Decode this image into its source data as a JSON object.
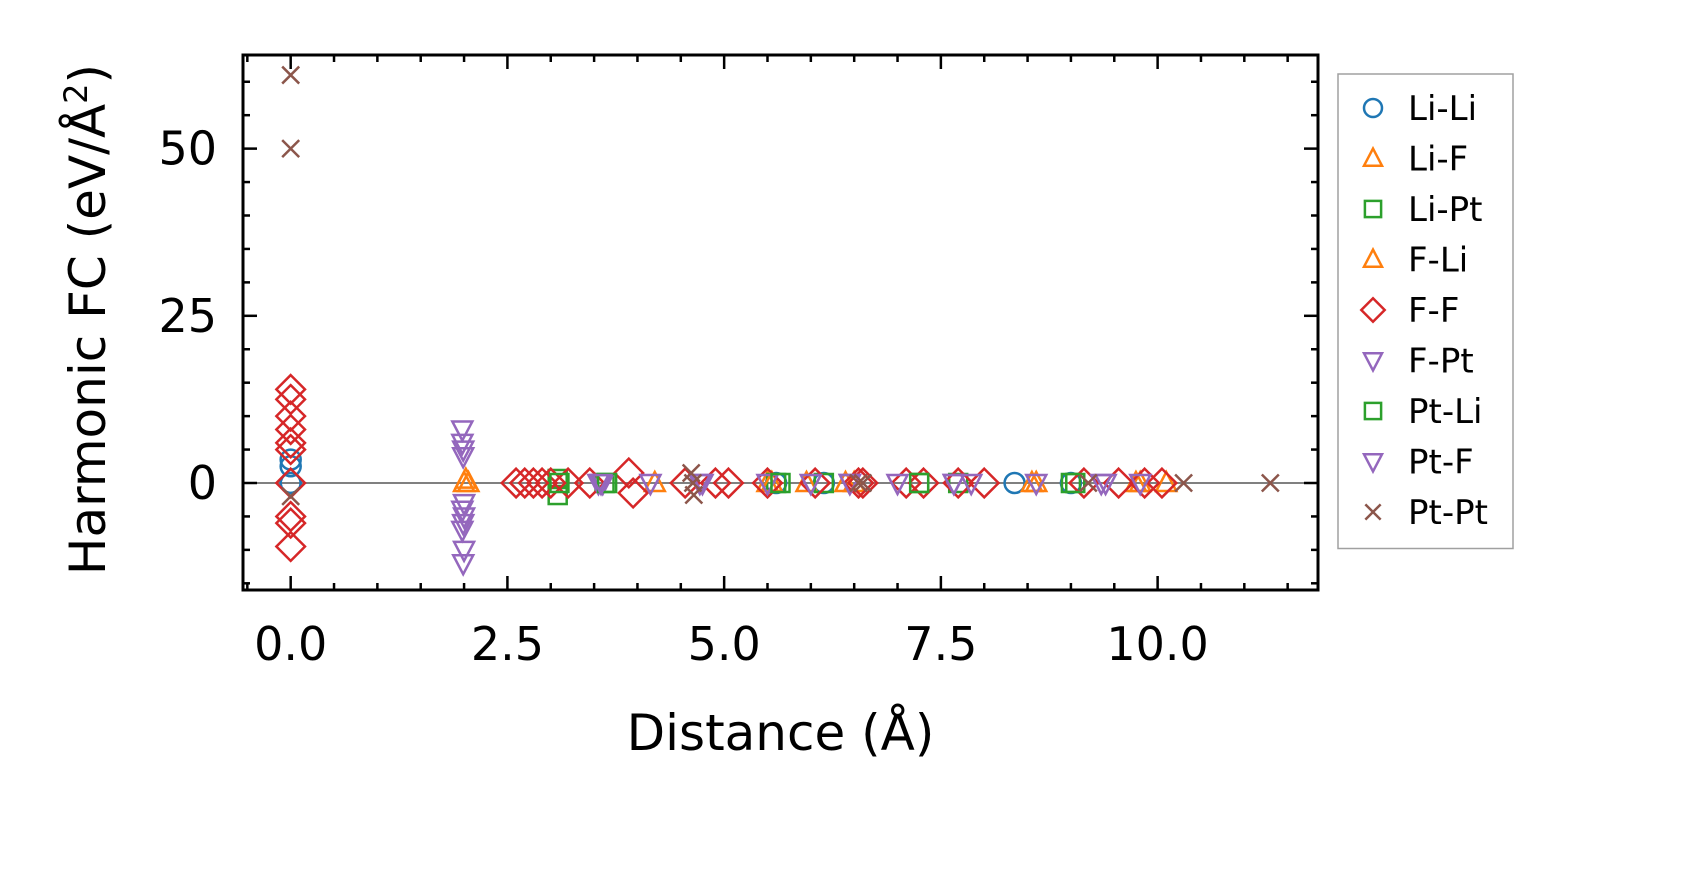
{
  "chart_data": {
    "type": "scatter",
    "title": "",
    "xlabel": "Distance (Å)",
    "ylabel_main": "Harmonic FC (eV/Å",
    "ylabel_sup": "2",
    "ylabel_close": ")",
    "xlim": [
      -0.55,
      11.85
    ],
    "ylim": [
      -16,
      64
    ],
    "xticks": [
      0.0,
      2.5,
      5.0,
      7.5,
      10.0
    ],
    "xtick_labels": [
      "0.0",
      "2.5",
      "5.0",
      "7.5",
      "10.0"
    ],
    "yticks": [
      0,
      25,
      50
    ],
    "ytick_labels": [
      "0",
      "25",
      "50"
    ],
    "zero_line": true,
    "legend_position": "outside-right",
    "series": [
      {
        "name": "Li-Li",
        "marker": "circle",
        "color": "#1f77b4",
        "x": [
          0,
          0,
          0,
          0,
          5.6,
          6.15,
          8.35,
          9.0
        ],
        "y": [
          0,
          2.5,
          3.5,
          0,
          0,
          0,
          0,
          0
        ]
      },
      {
        "name": "Li-F",
        "marker": "triangle-up",
        "color": "#ff7f0e",
        "x": [
          2.0,
          2.02,
          5.5,
          5.95,
          6.4,
          8.55,
          9.75,
          10.1
        ],
        "y": [
          0,
          0.5,
          0,
          0,
          0,
          0,
          0,
          0
        ]
      },
      {
        "name": "Li-Pt",
        "marker": "square",
        "color": "#2ca02c",
        "x": [
          3.08,
          3.08,
          3.62,
          5.6,
          6.15,
          7.25,
          7.7,
          9.05
        ],
        "y": [
          0.6,
          -1.8,
          0,
          0,
          0,
          0,
          0,
          0
        ]
      },
      {
        "name": "F-Li",
        "marker": "triangle-up",
        "color": "#ff7f0e",
        "x": [
          2.05,
          4.2,
          5.55,
          6.5,
          8.6,
          9.8
        ],
        "y": [
          0,
          0,
          0,
          0,
          0,
          0
        ]
      },
      {
        "name": "F-F",
        "marker": "diamond",
        "color": "#d62728",
        "x": [
          0,
          0,
          0,
          0,
          0,
          0,
          0,
          0,
          0,
          0,
          2.6,
          2.7,
          2.8,
          2.9,
          3.0,
          3.2,
          3.45,
          3.9,
          3.95,
          4.55,
          4.9,
          5.05,
          5.5,
          6.05,
          6.55,
          6.6,
          7.1,
          7.3,
          7.7,
          8.0,
          9.15,
          9.55,
          9.85,
          10.05
        ],
        "y": [
          14,
          12.5,
          10,
          8,
          6,
          5,
          0,
          -5,
          -6,
          -9.5,
          0,
          0,
          0,
          0,
          0,
          0,
          0,
          1.5,
          -1.5,
          0,
          0,
          0,
          0,
          0,
          0,
          0,
          0,
          0,
          0,
          0,
          0,
          0,
          0,
          0
        ]
      },
      {
        "name": "F-Pt",
        "marker": "triangle-down",
        "color": "#9467bd",
        "x": [
          1.98,
          1.98,
          1.99,
          2.0,
          1.98,
          2.0,
          1.99,
          1.98,
          2.0,
          1.99,
          3.55,
          3.6,
          4.15,
          4.75,
          5.5,
          6.0,
          6.45,
          7.0,
          7.65,
          7.85,
          8.6,
          9.35,
          9.8
        ],
        "y": [
          8,
          6,
          4,
          -3,
          -4,
          -5,
          -6,
          -7,
          -10,
          -12,
          0,
          0,
          0,
          0,
          0,
          0,
          0,
          0,
          0,
          0,
          0,
          0,
          0
        ]
      },
      {
        "name": "Pt-Li",
        "marker": "square",
        "color": "#2ca02c",
        "x": [
          3.1,
          3.65,
          5.65,
          7.25,
          9.0
        ],
        "y": [
          0,
          0,
          0,
          0,
          0
        ]
      },
      {
        "name": "Pt-F",
        "marker": "triangle-down",
        "color": "#9467bd",
        "x": [
          1.99,
          3.58,
          4.72,
          6.45,
          7.65,
          9.4
        ],
        "y": [
          5,
          0,
          0,
          0,
          0,
          0
        ]
      },
      {
        "name": "Pt-Pt",
        "marker": "x",
        "color": "#8c564b",
        "x": [
          0,
          0,
          0,
          4.62,
          4.64,
          4.65,
          6.55,
          6.6,
          9.2,
          10.3,
          11.3
        ],
        "y": [
          61,
          50,
          -2,
          1.5,
          0,
          -1.8,
          0,
          0,
          0,
          0,
          0
        ]
      }
    ]
  }
}
